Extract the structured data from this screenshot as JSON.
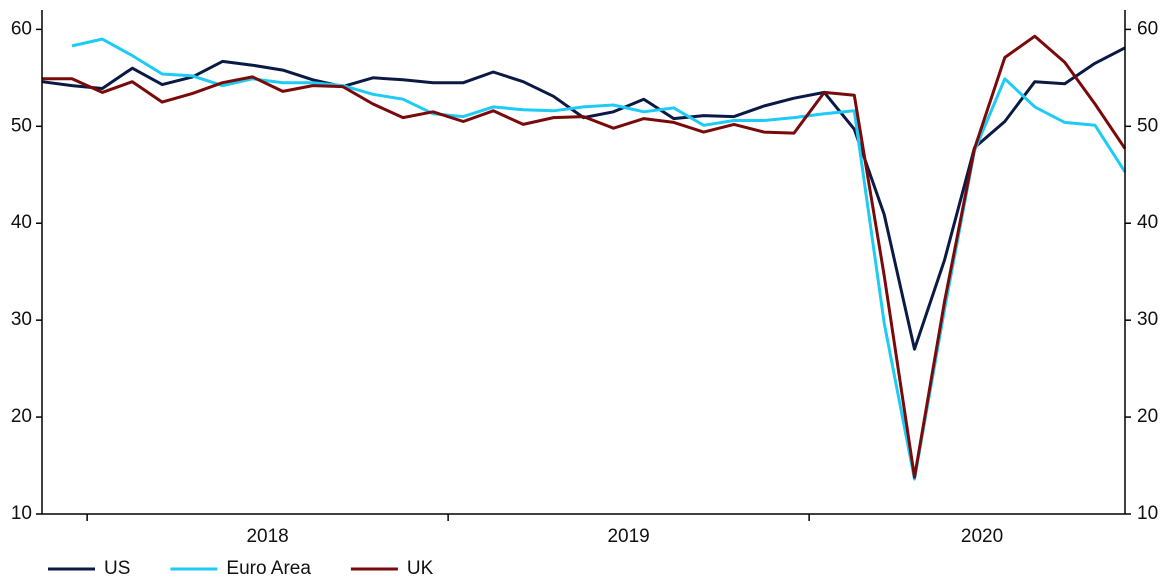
{
  "chart_data": {
    "type": "line",
    "x": [
      2017.875,
      2017.958,
      2018.042,
      2018.125,
      2018.208,
      2018.292,
      2018.375,
      2018.458,
      2018.542,
      2018.625,
      2018.708,
      2018.792,
      2018.875,
      2018.958,
      2019.042,
      2019.125,
      2019.208,
      2019.292,
      2019.375,
      2019.458,
      2019.542,
      2019.625,
      2019.708,
      2019.792,
      2019.875,
      2019.958,
      2020.042,
      2020.125,
      2020.208,
      2020.292,
      2020.375,
      2020.458,
      2020.542,
      2020.625,
      2020.708,
      2020.792,
      2020.875
    ],
    "series": [
      {
        "name": "US",
        "color": "#0b1a45",
        "values": [
          54.6,
          54.2,
          53.9,
          56.0,
          54.3,
          55.1,
          56.7,
          56.3,
          55.8,
          54.8,
          54.1,
          55.0,
          54.8,
          54.5,
          54.5,
          55.6,
          54.6,
          53.1,
          50.9,
          51.5,
          52.8,
          50.8,
          51.1,
          51.0,
          52.1,
          52.9,
          53.5,
          49.7,
          40.9,
          27.0,
          36.2,
          47.8,
          50.5,
          54.6,
          54.4,
          56.5,
          58.1
        ]
      },
      {
        "name": "Euro Area",
        "color": "#1ecbf5",
        "values": [
          null,
          58.3,
          59.0,
          57.3,
          55.4,
          55.2,
          54.2,
          54.9,
          54.5,
          54.5,
          54.2,
          53.3,
          52.8,
          51.3,
          51.0,
          52.0,
          51.7,
          51.6,
          52.0,
          52.2,
          51.5,
          51.9,
          50.1,
          50.6,
          50.6,
          50.9,
          51.3,
          51.6,
          29.7,
          13.6,
          31.1,
          47.5,
          54.9,
          52.0,
          50.4,
          50.1,
          45.3
        ]
      },
      {
        "name": "UK",
        "color": "#7a0a0a",
        "values": [
          54.9,
          54.9,
          53.5,
          54.6,
          52.5,
          53.4,
          54.5,
          55.1,
          53.6,
          54.2,
          54.1,
          52.3,
          50.9,
          51.5,
          50.5,
          51.6,
          50.2,
          50.9,
          51.0,
          49.8,
          50.8,
          50.4,
          49.4,
          50.2,
          49.4,
          49.3,
          53.5,
          53.2,
          34.6,
          13.8,
          31.9,
          47.7,
          57.1,
          59.3,
          56.6,
          52.3,
          47.7
        ]
      }
    ],
    "xlim": [
      2017.875,
      2020.875
    ],
    "xticks": [
      2018,
      2019,
      2020
    ],
    "ylim": [
      10,
      62
    ],
    "yticks": [
      10,
      20,
      30,
      40,
      50,
      60
    ],
    "y2lim": [
      10,
      62
    ],
    "y2ticks": [
      10,
      20,
      30,
      40,
      50,
      60
    ],
    "legend": "bottom-left"
  }
}
